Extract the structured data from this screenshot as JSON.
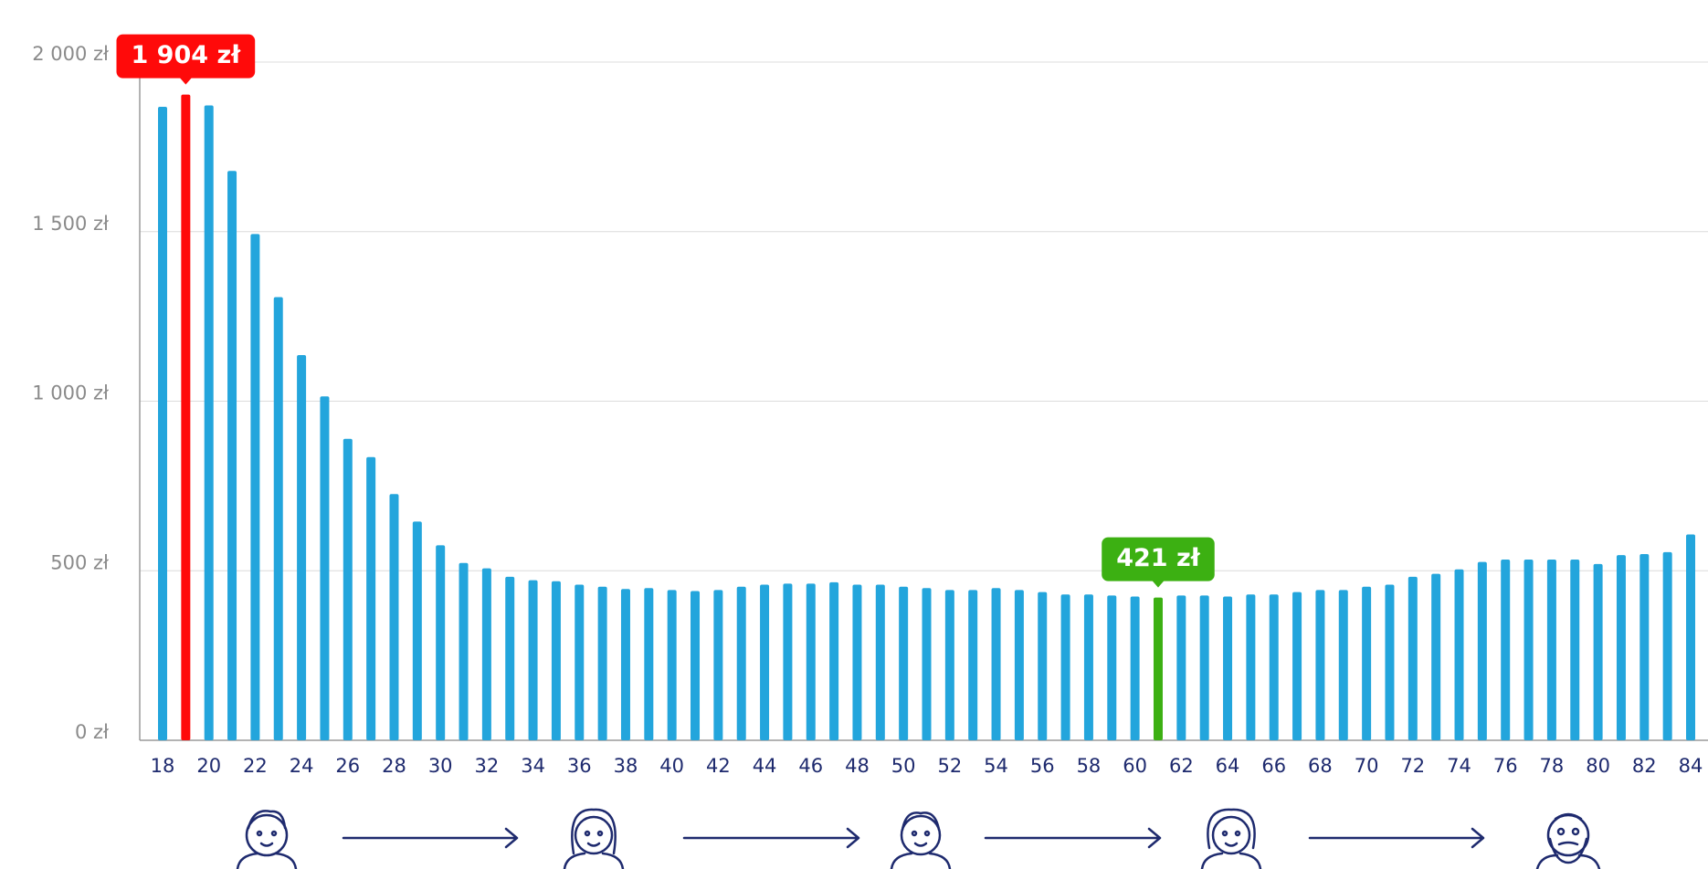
{
  "chart_data": {
    "type": "bar",
    "categories": [
      "18",
      null,
      "20",
      null,
      "22",
      null,
      "24",
      null,
      "26",
      null,
      "28",
      null,
      "30",
      null,
      "32",
      null,
      "34",
      null,
      "36",
      null,
      "38",
      null,
      "40",
      null,
      "42",
      null,
      "44",
      null,
      "46",
      null,
      "48",
      null,
      "50",
      null,
      "52",
      null,
      "54",
      null,
      "56",
      null,
      "58",
      null,
      "60",
      null,
      "62",
      null,
      "64",
      null,
      "66",
      null,
      "68",
      null,
      "70",
      null,
      "72",
      null,
      "74",
      null,
      "76",
      null,
      "78",
      null,
      "80",
      null,
      "82",
      null,
      "84"
    ],
    "series": [
      {
        "color": "#23a5dc",
        "colors": [
          "#23a5dc",
          "#ff0a0a",
          "#23a5dc",
          "#23a5dc",
          "#23a5dc",
          "#23a5dc",
          "#23a5dc",
          "#23a5dc",
          "#23a5dc",
          "#23a5dc",
          "#23a5dc",
          "#23a5dc",
          "#23a5dc",
          "#23a5dc",
          "#23a5dc",
          "#23a5dc",
          "#23a5dc",
          "#23a5dc",
          "#23a5dc",
          "#23a5dc",
          "#23a5dc",
          "#23a5dc",
          "#23a5dc",
          "#23a5dc",
          "#23a5dc",
          "#23a5dc",
          "#23a5dc",
          "#23a5dc",
          "#23a5dc",
          "#23a5dc",
          "#23a5dc",
          "#23a5dc",
          "#23a5dc",
          "#23a5dc",
          "#23a5dc",
          "#23a5dc",
          "#23a5dc",
          "#23a5dc",
          "#23a5dc",
          "#23a5dc",
          "#23a5dc",
          "#23a5dc",
          "#23a5dc",
          "#3cb012",
          "#23a5dc",
          "#23a5dc",
          "#23a5dc",
          "#23a5dc",
          "#23a5dc",
          "#23a5dc",
          "#23a5dc",
          "#23a5dc",
          "#23a5dc",
          "#23a5dc",
          "#23a5dc",
          "#23a5dc",
          "#23a5dc",
          "#23a5dc",
          "#23a5dc",
          "#23a5dc",
          "#23a5dc",
          "#23a5dc",
          "#23a5dc",
          "#23a5dc",
          "#23a5dc",
          "#23a5dc",
          "#23a5dc"
        ],
        "values": [
          1868,
          1904,
          1872,
          1679,
          1493,
          1307,
          1136,
          1014,
          889,
          835,
          726,
          645,
          575,
          523,
          507,
          482,
          472,
          469,
          459,
          453,
          446,
          449,
          443,
          440,
          443,
          453,
          459,
          462,
          462,
          466,
          459,
          459,
          453,
          449,
          443,
          443,
          449,
          443,
          437,
          430,
          430,
          427,
          424,
          421,
          427,
          427,
          424,
          430,
          430,
          437,
          443,
          443,
          453,
          459,
          482,
          491,
          504,
          526,
          533,
          533,
          533,
          533,
          520,
          546,
          549,
          555,
          607
        ],
        "value_labels": [
          null,
          "1 904 zł",
          null,
          null,
          null,
          null,
          null,
          null,
          null,
          null,
          null,
          null,
          null,
          null,
          null,
          null,
          null,
          null,
          null,
          null,
          null,
          null,
          null,
          null,
          null,
          null,
          null,
          null,
          null,
          null,
          null,
          null,
          null,
          null,
          null,
          null,
          null,
          null,
          null,
          null,
          null,
          null,
          null,
          "421 zł",
          null,
          null,
          null,
          null,
          null,
          null,
          null,
          null,
          null,
          null,
          null,
          null,
          null,
          null,
          null,
          null,
          null,
          null,
          null,
          null,
          null,
          null,
          null
        ]
      }
    ],
    "ylim": [
      0,
      2000
    ],
    "yticks": [
      {
        "value": 0,
        "label": "0 zł"
      },
      {
        "value": 500,
        "label": "500 zł"
      },
      {
        "value": 1000,
        "label": "1 000 zł"
      },
      {
        "value": 1500,
        "label": "1 500 zł"
      },
      {
        "value": 2000,
        "label": "2 000 zł"
      }
    ],
    "grid": true
  }
}
